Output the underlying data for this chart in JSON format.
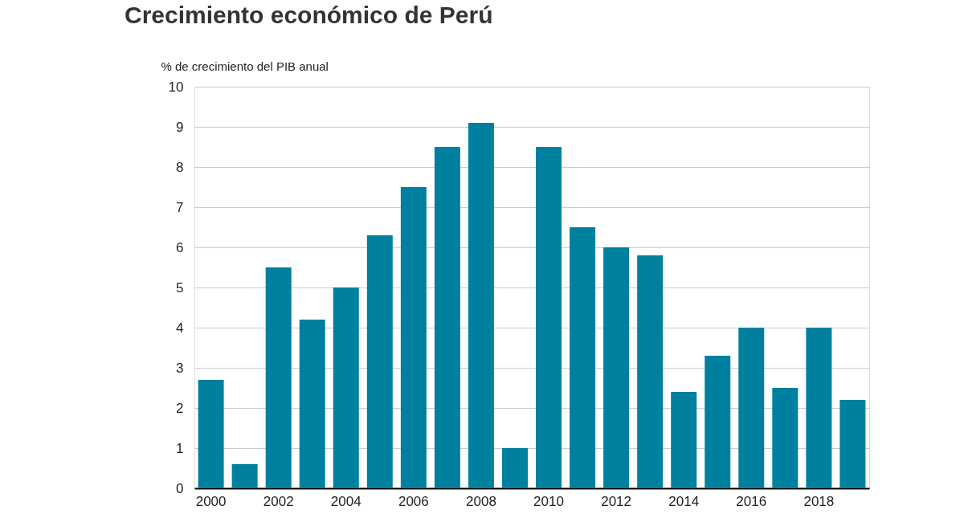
{
  "chart_data": {
    "type": "bar",
    "title": "Crecimiento económico de Perú",
    "ylabel": "% de crecimiento del PIB anual",
    "categories": [
      "2000",
      null,
      "2002",
      null,
      "2004",
      null,
      "2006",
      null,
      "2008",
      null,
      "2010",
      null,
      "2012",
      null,
      "2014",
      null,
      "2016",
      null,
      "2018",
      null
    ],
    "values": [
      2.7,
      0.6,
      5.5,
      4.2,
      5.0,
      6.3,
      7.5,
      8.5,
      9.1,
      1.0,
      8.5,
      6.5,
      6.0,
      5.8,
      2.4,
      3.3,
      4.0,
      2.5,
      4.0,
      2.2
    ],
    "color": "#00809f",
    "ylim": [
      0,
      10
    ],
    "yticks": [
      0,
      1,
      2,
      3,
      4,
      5,
      6,
      7,
      8,
      9,
      10
    ],
    "grid": "y"
  }
}
